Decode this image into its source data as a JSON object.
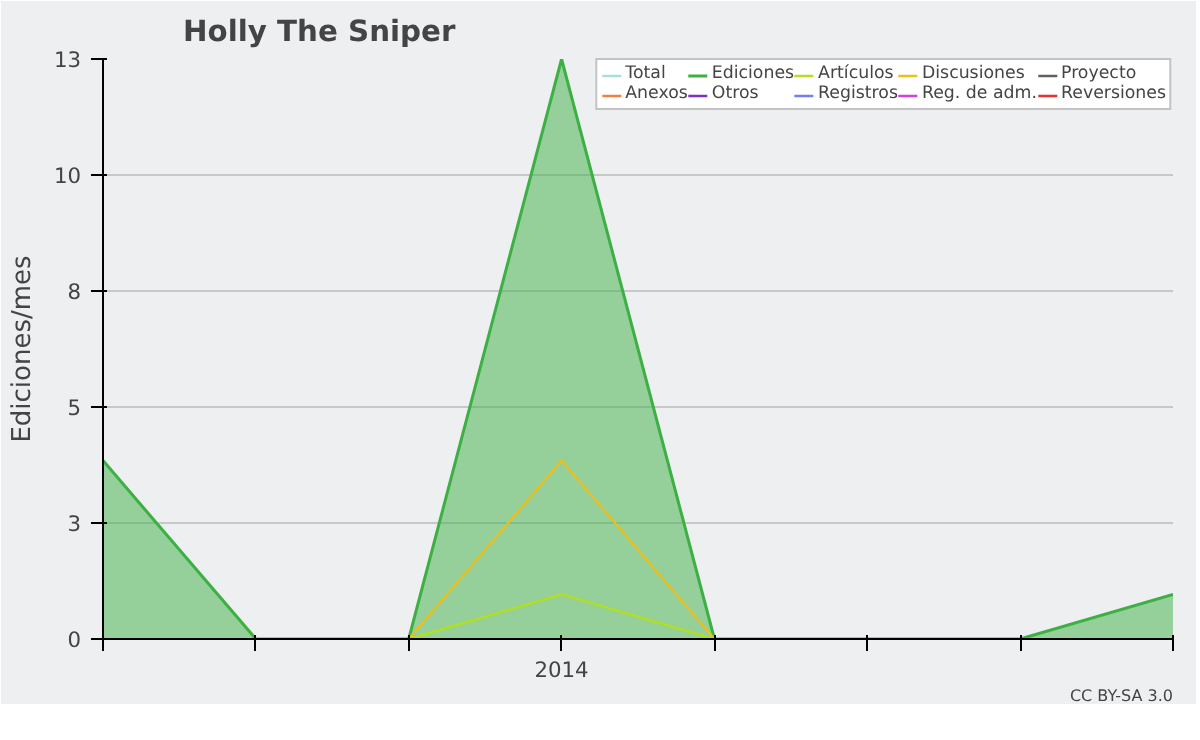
{
  "chart_data": {
    "type": "line",
    "title": "Holly The Sniper",
    "ylabel": "Ediciones/mes",
    "categories": [
      null,
      null,
      null,
      "2014",
      null,
      null,
      null,
      null
    ],
    "ylim": [
      0,
      13
    ],
    "yticks": [
      {
        "value": 0,
        "label": "0"
      },
      {
        "value": 2.6,
        "label": "3"
      },
      {
        "value": 5.2,
        "label": "5"
      },
      {
        "value": 7.8,
        "label": "8"
      },
      {
        "value": 10.4,
        "label": "10"
      },
      {
        "value": 13,
        "label": "13"
      }
    ],
    "series": [
      {
        "name": "Total",
        "color": "#a8dede",
        "values": [
          null,
          null,
          null,
          null,
          null,
          null,
          null,
          null
        ]
      },
      {
        "name": "Ediciones",
        "color": "#3cb043",
        "type": "area",
        "values": [
          4,
          0,
          0,
          13,
          0,
          0,
          0,
          1
        ]
      },
      {
        "name": "Artículos",
        "color": "#b0e020",
        "values": [
          null,
          null,
          0,
          1,
          0,
          null,
          null,
          null
        ]
      },
      {
        "name": "Discusiones",
        "color": "#e8c020",
        "values": [
          null,
          null,
          0,
          4,
          0,
          null,
          null,
          null
        ]
      },
      {
        "name": "Proyecto",
        "color": "#606060",
        "values": [
          null,
          null,
          null,
          null,
          null,
          null,
          null,
          null
        ]
      },
      {
        "name": "Anexos",
        "color": "#f08040",
        "values": [
          null,
          null,
          null,
          null,
          null,
          null,
          null,
          null
        ]
      },
      {
        "name": "Otros",
        "color": "#8030c0",
        "values": [
          null,
          null,
          null,
          null,
          null,
          null,
          null,
          null
        ]
      },
      {
        "name": "Registros",
        "color": "#7080f0",
        "values": [
          null,
          null,
          null,
          null,
          null,
          null,
          null,
          null
        ]
      },
      {
        "name": "Reg. de adm.",
        "color": "#d040e0",
        "values": [
          null,
          null,
          null,
          null,
          null,
          null,
          null,
          null
        ]
      },
      {
        "name": "Reversiones",
        "color": "#e03030",
        "values": [
          null,
          null,
          null,
          null,
          null,
          null,
          null,
          null
        ]
      }
    ],
    "grid": "y",
    "legend": "top right",
    "annotations": [
      "CC BY-SA 3.0"
    ]
  }
}
